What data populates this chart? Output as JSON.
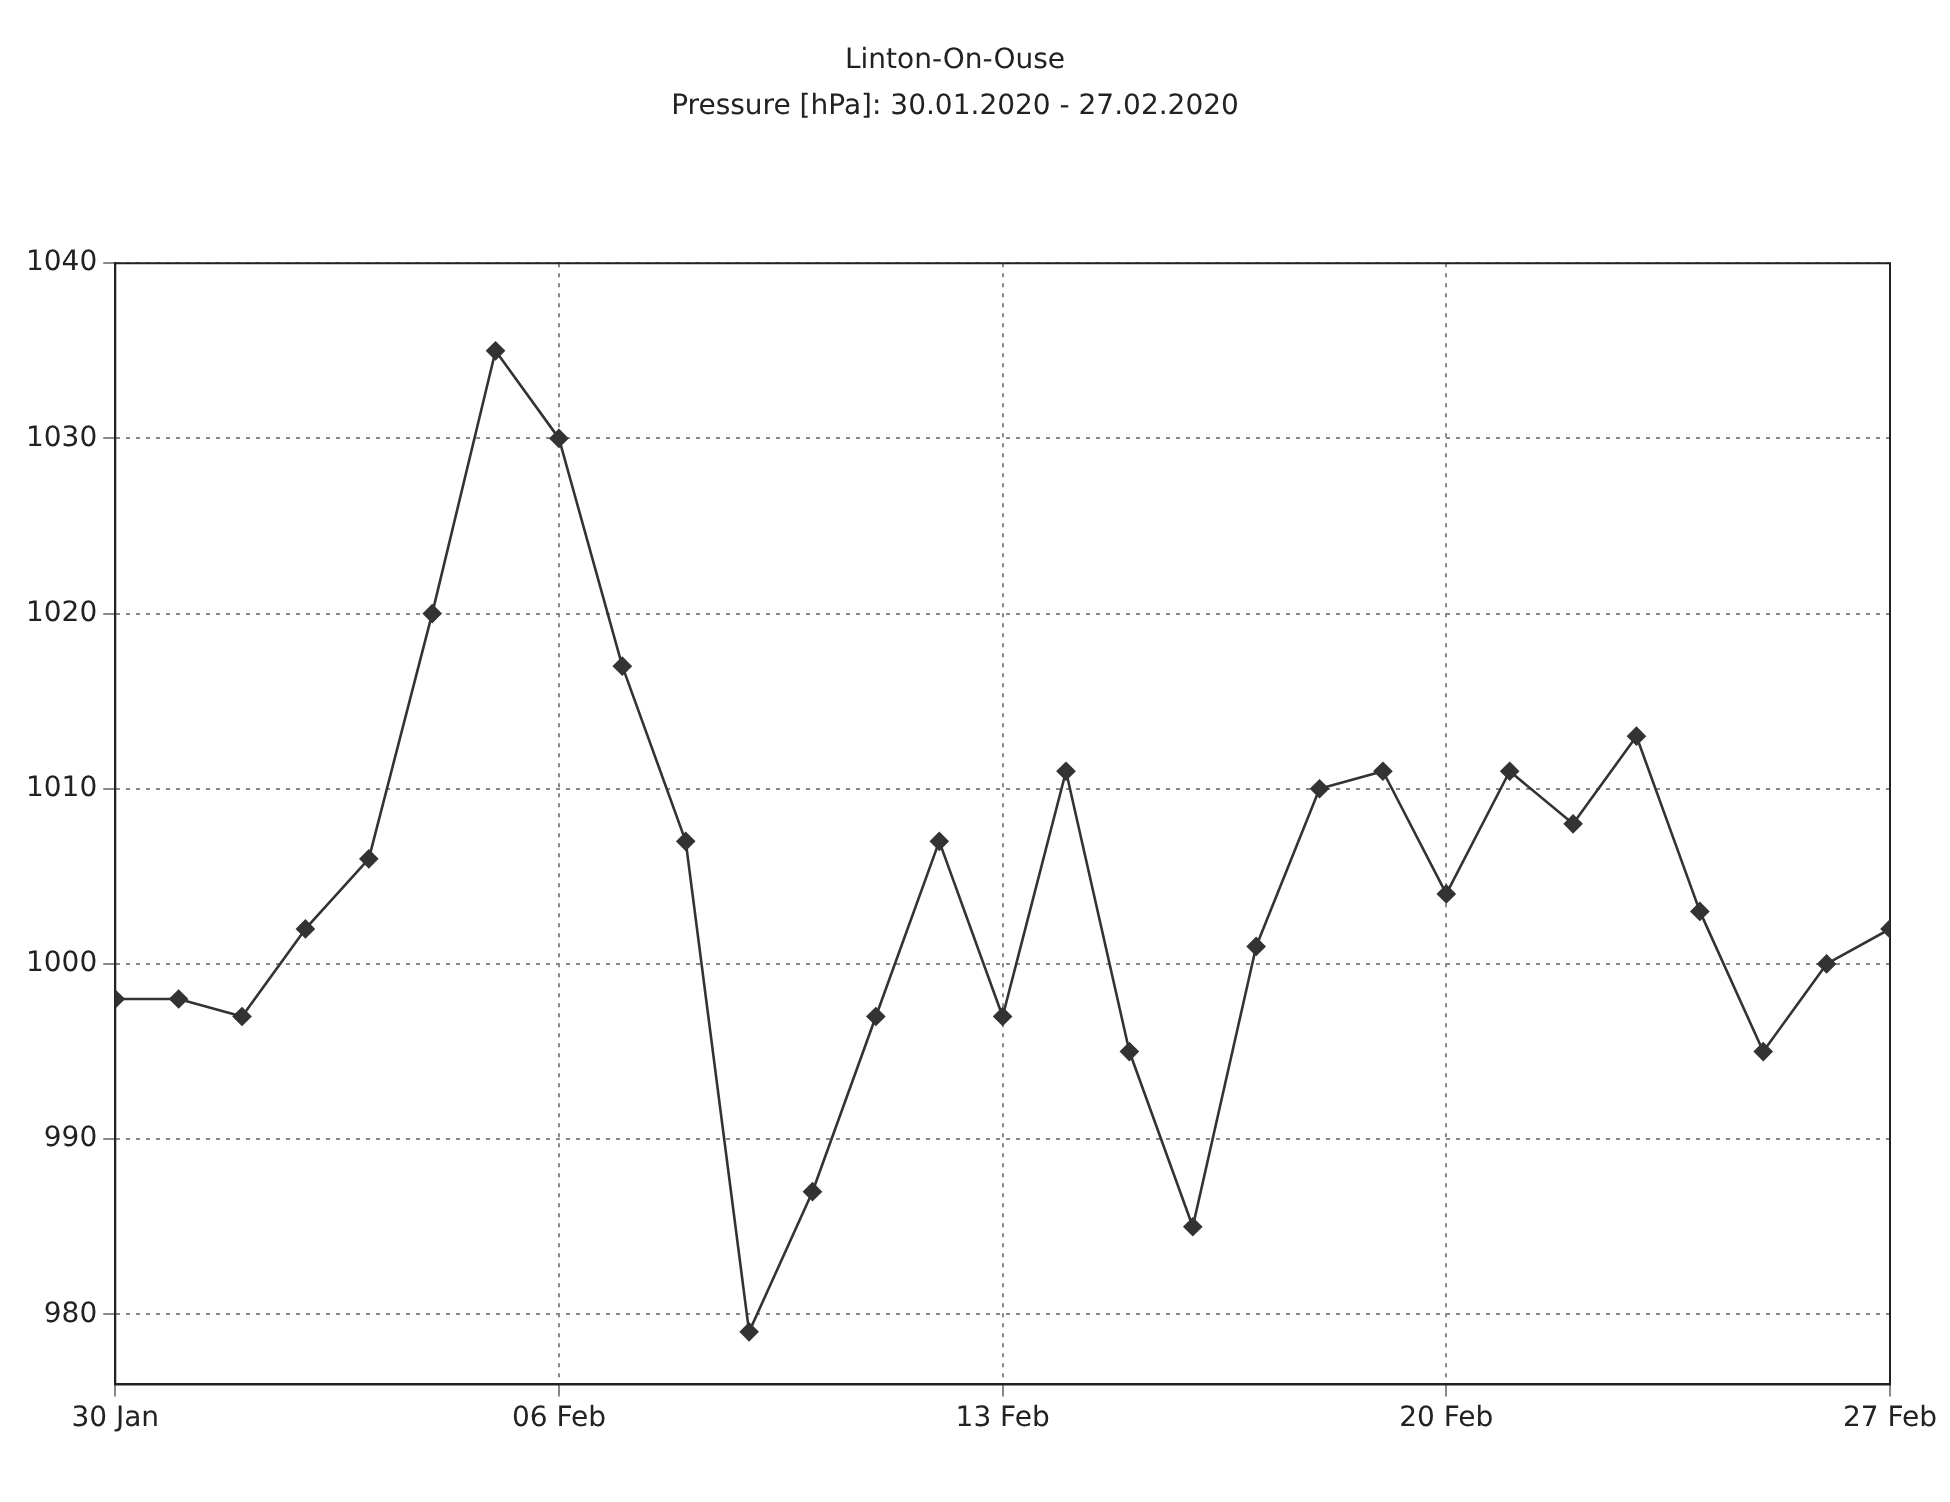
{
  "chart_data": {
    "type": "line",
    "title": "Linton-On-Ouse",
    "subtitle": "Pressure [hPa]: 30.01.2020 - 27.02.2020",
    "x": [
      "2020-01-30",
      "2020-01-31",
      "2020-02-01",
      "2020-02-02",
      "2020-02-03",
      "2020-02-04",
      "2020-02-05",
      "2020-02-06",
      "2020-02-07",
      "2020-02-08",
      "2020-02-09",
      "2020-02-10",
      "2020-02-11",
      "2020-02-12",
      "2020-02-13",
      "2020-02-14",
      "2020-02-15",
      "2020-02-16",
      "2020-02-17",
      "2020-02-18",
      "2020-02-19",
      "2020-02-20",
      "2020-02-21",
      "2020-02-22",
      "2020-02-23",
      "2020-02-24",
      "2020-02-25",
      "2020-02-26",
      "2020-02-27"
    ],
    "series": [
      {
        "color": "#333333",
        "values": [
          998,
          998,
          997,
          1002,
          1006,
          1020,
          1035,
          1030,
          1017,
          1007,
          979,
          987,
          997,
          1007,
          997,
          1011,
          995,
          985,
          1001,
          1010,
          1011,
          1004,
          1011,
          1008,
          1013,
          1003,
          995,
          1000,
          1002
        ]
      }
    ],
    "xlim": [
      "2020-01-30",
      "2020-02-27"
    ],
    "xticks": [
      {
        "value": "2020-01-30",
        "label": "30 Jan"
      },
      {
        "value": "2020-02-06",
        "label": "06 Feb"
      },
      {
        "value": "2020-02-13",
        "label": "13 Feb"
      },
      {
        "value": "2020-02-20",
        "label": "20 Feb"
      },
      {
        "value": "2020-02-27",
        "label": "27 Feb"
      }
    ],
    "ylim": [
      976,
      1040
    ],
    "yticks": [
      980,
      990,
      1000,
      1010,
      1020,
      1030,
      1040
    ],
    "grid": true,
    "legend": false,
    "marker": "diamond",
    "line_style": "solid"
  }
}
